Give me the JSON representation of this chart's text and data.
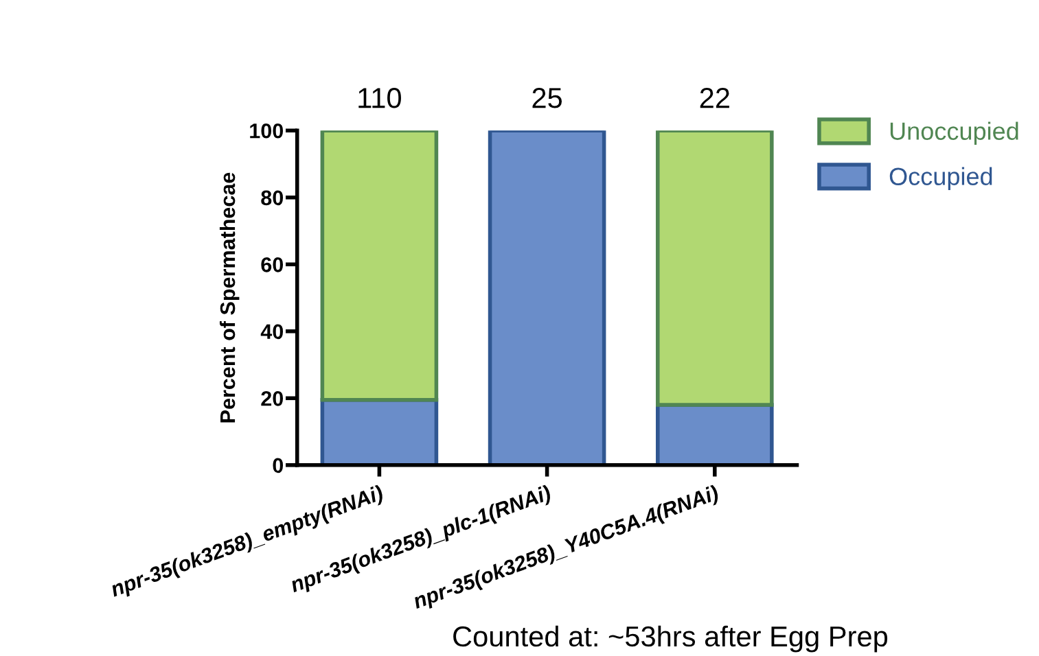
{
  "chart_data": {
    "type": "bar",
    "stacked": true,
    "ylabel": "Percent of Spermathecae",
    "categories": [
      "npr-35(ok3258)_empty(RNAi)",
      "npr-35(ok3258)_plc-1(RNAi)",
      "npr-35(ok3258)_Y40C5A.4(RNAi)"
    ],
    "series": [
      {
        "name": "Occupied",
        "color": "#6a8dc9",
        "values": [
          19.5,
          100,
          18
        ]
      },
      {
        "name": "Unoccupied",
        "color": "#b1d872",
        "values": [
          80.5,
          0,
          82
        ]
      }
    ],
    "ylim": [
      0,
      100
    ],
    "yticks": [
      0,
      20,
      40,
      60,
      80,
      100
    ],
    "grid": false,
    "legend": "top right",
    "annotations": [
      "110",
      "25",
      "22",
      "Counted at: ~53hrs after Egg Prep"
    ]
  }
}
